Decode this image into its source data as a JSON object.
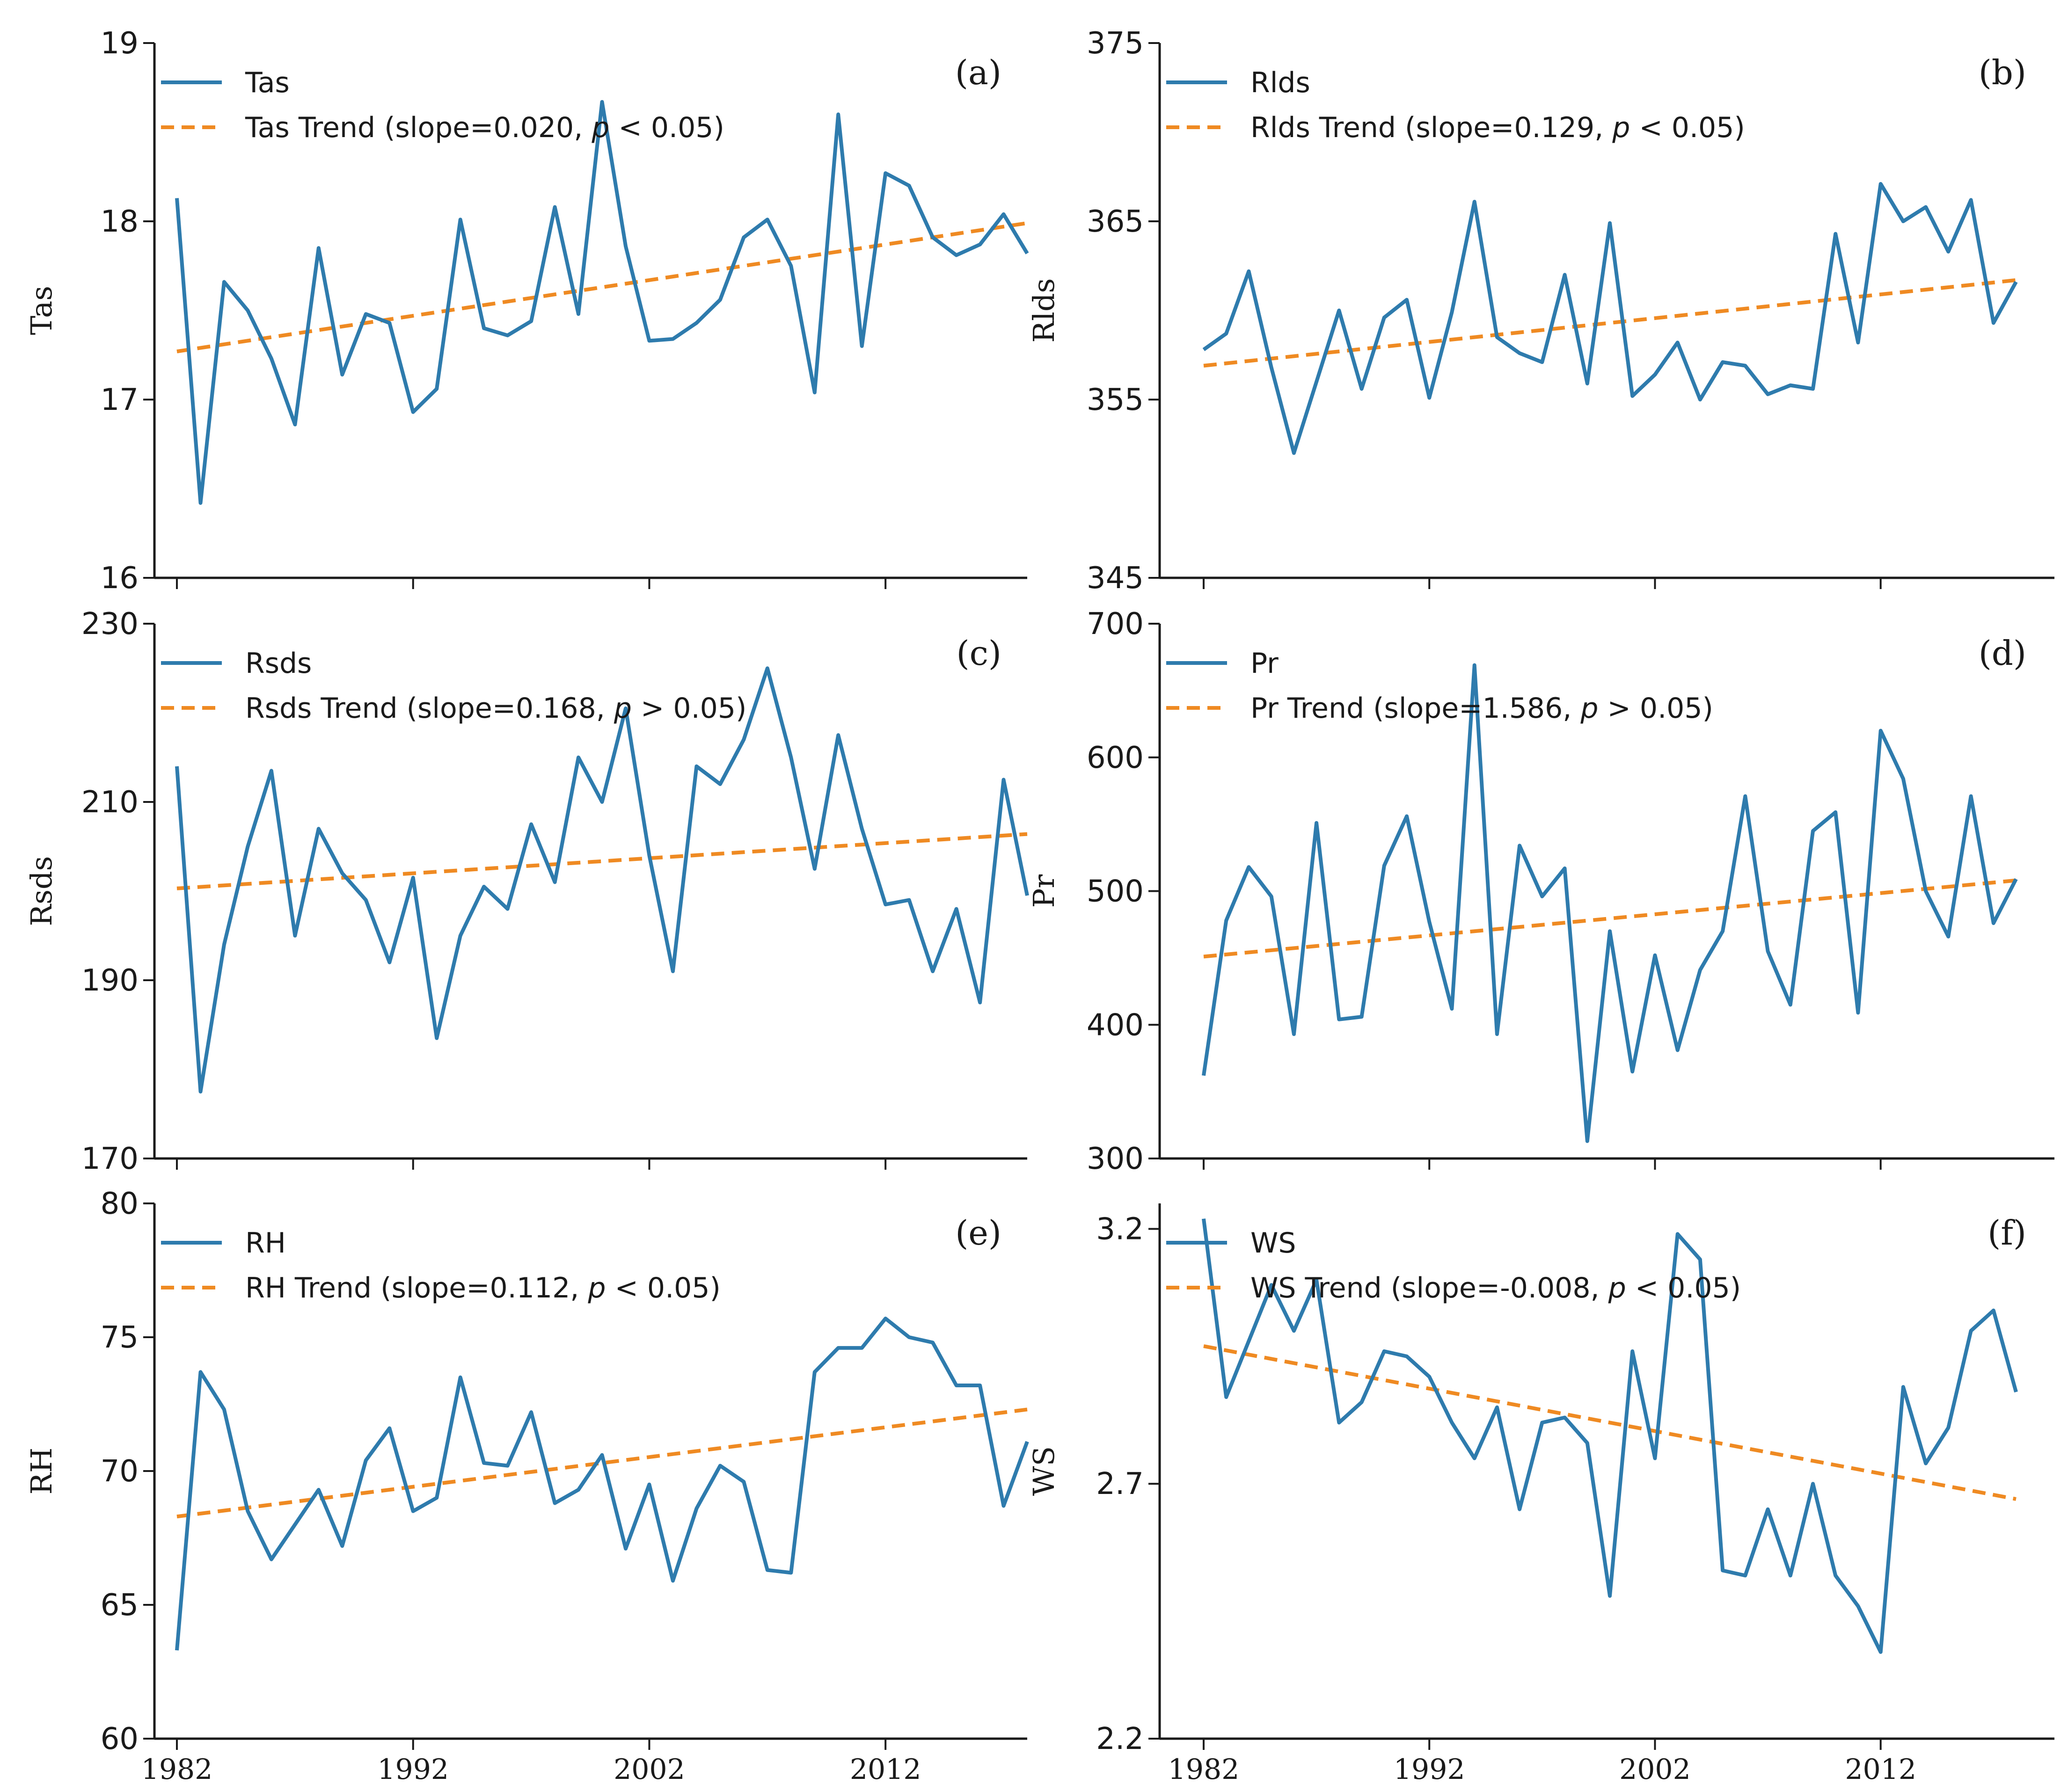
{
  "colors": {
    "series": "#2e7bad",
    "trend": "#ef8a22"
  },
  "chart_data": [
    {
      "id": "a",
      "type": "line",
      "panel_label": "(a)",
      "ylabel": "Tas",
      "ylim": [
        16,
        19
      ],
      "yticks": [
        "16",
        "17",
        "18",
        "19"
      ],
      "xticks": [
        "1982",
        "1992",
        "2002",
        "2012"
      ],
      "xtick_values": [
        1982,
        1992,
        2002,
        2012
      ],
      "x_start": 1982,
      "series": [
        {
          "name": "Tas",
          "values": [
            18.13,
            16.42,
            17.66,
            17.5,
            17.23,
            16.86,
            17.85,
            17.14,
            17.48,
            17.43,
            16.93,
            17.06,
            18.01,
            17.4,
            17.36,
            17.44,
            18.08,
            17.48,
            18.67,
            17.86,
            17.33,
            17.34,
            17.43,
            17.56,
            17.91,
            18.01,
            17.75,
            17.04,
            18.6,
            17.3,
            18.27,
            18.2,
            17.91,
            17.81,
            17.87,
            18.04,
            17.82
          ]
        }
      ],
      "trend": {
        "name": "Tas Trend",
        "start": 17.27,
        "end": 17.99
      },
      "legend": {
        "series_label": "Tas",
        "trend_label_prefix": "Tas Trend (slope=0.020, ",
        "p_symbol": "p",
        "trend_label_suffix": " < 0.05)"
      }
    },
    {
      "id": "b",
      "type": "line",
      "panel_label": "(b)",
      "ylabel": "Rlds",
      "ylim": [
        345,
        375
      ],
      "yticks": [
        "345",
        "355",
        "365",
        "375"
      ],
      "xticks": [
        "1982",
        "1992",
        "2002",
        "2012"
      ],
      "xtick_values": [
        1982,
        1992,
        2002,
        2012
      ],
      "x_start": 1982,
      "series": [
        {
          "name": "Rlds",
          "values": [
            357.8,
            358.7,
            362.2,
            356.8,
            352.0,
            356.0,
            360.0,
            355.6,
            359.6,
            360.6,
            355.1,
            359.9,
            366.1,
            358.5,
            357.6,
            357.1,
            362.0,
            355.9,
            364.9,
            355.2,
            356.4,
            358.2,
            355.0,
            357.1,
            356.9,
            355.3,
            355.8,
            355.6,
            364.3,
            358.2,
            367.1,
            365.0,
            365.8,
            363.3,
            366.2,
            359.3,
            361.6
          ]
        }
      ],
      "trend": {
        "name": "Rlds Trend",
        "start": 356.9,
        "end": 361.7
      },
      "legend": {
        "series_label": "Rlds",
        "trend_label_prefix": "Rlds Trend (slope=0.129, ",
        "p_symbol": "p",
        "trend_label_suffix": " < 0.05)"
      }
    },
    {
      "id": "c",
      "type": "line",
      "panel_label": "(c)",
      "ylabel": "Rsds",
      "ylim": [
        170,
        230
      ],
      "yticks": [
        "170",
        "190",
        "210",
        "230"
      ],
      "xticks": [
        "1982",
        "1992",
        "2002",
        "2012"
      ],
      "xtick_values": [
        1982,
        1992,
        2002,
        2012
      ],
      "x_start": 1982,
      "series": [
        {
          "name": "Rsds",
          "values": [
            214.0,
            177.5,
            194.0,
            205.0,
            213.5,
            195.0,
            207.0,
            202.0,
            199.0,
            192.0,
            201.5,
            183.5,
            195.0,
            200.5,
            198.0,
            207.5,
            201.0,
            215.0,
            210.0,
            220.5,
            204.0,
            191.0,
            214.0,
            212.0,
            217.0,
            225.0,
            215.0,
            202.5,
            217.5,
            207.0,
            198.5,
            199.0,
            191.0,
            198.0,
            187.5,
            212.5,
            199.5
          ]
        }
      ],
      "trend": {
        "name": "Rsds Trend",
        "start": 200.3,
        "end": 206.4
      },
      "legend": {
        "series_label": "Rsds",
        "trend_label_prefix": "Rsds Trend (slope=0.168, ",
        "p_symbol": "p",
        "trend_label_suffix": " > 0.05)"
      }
    },
    {
      "id": "d",
      "type": "line",
      "panel_label": "(d)",
      "ylabel": "Pr",
      "ylim": [
        300,
        700
      ],
      "yticks": [
        "300",
        "400",
        "500",
        "600",
        "700"
      ],
      "xticks": [
        "1982",
        "1992",
        "2002",
        "2012"
      ],
      "xtick_values": [
        1982,
        1992,
        2002,
        2012
      ],
      "x_start": 1982,
      "series": [
        {
          "name": "Pr",
          "values": [
            362,
            478,
            518,
            496,
            393,
            551,
            404,
            406,
            519,
            556,
            477,
            412,
            669,
            393,
            534,
            496,
            517,
            313,
            470,
            365,
            452,
            381,
            441,
            470,
            571,
            455,
            415,
            545,
            559,
            409,
            620,
            584,
            500,
            466,
            571,
            476,
            509
          ]
        }
      ],
      "trend": {
        "name": "Pr Trend",
        "start": 451,
        "end": 508
      },
      "legend": {
        "series_label": "Pr",
        "trend_label_prefix": "Pr Trend (slope=1.586, ",
        "p_symbol": "p",
        "trend_label_suffix": " > 0.05)"
      }
    },
    {
      "id": "e",
      "type": "line",
      "panel_label": "(e)",
      "ylabel": "RH",
      "ylim": [
        60,
        80
      ],
      "yticks": [
        "60",
        "65",
        "70",
        "75",
        "80"
      ],
      "xticks": [
        "1982",
        "1992",
        "2002",
        "2012"
      ],
      "xtick_values": [
        1982,
        1992,
        2002,
        2012
      ],
      "x_start": 1982,
      "series": [
        {
          "name": "RH",
          "values": [
            63.3,
            73.7,
            72.3,
            68.5,
            66.7,
            68.0,
            69.3,
            67.2,
            70.4,
            71.6,
            68.5,
            69.0,
            73.5,
            70.3,
            70.2,
            72.2,
            68.8,
            69.3,
            70.6,
            67.1,
            69.5,
            65.9,
            68.6,
            70.2,
            69.6,
            66.3,
            66.2,
            73.7,
            74.6,
            74.6,
            75.7,
            75.0,
            74.8,
            73.2,
            73.2,
            68.7,
            71.1
          ]
        }
      ],
      "trend": {
        "name": "RH Trend",
        "start": 68.3,
        "end": 72.3
      },
      "legend": {
        "series_label": "RH",
        "trend_label_prefix": "RH Trend (slope=0.112, ",
        "p_symbol": "p",
        "trend_label_suffix": " < 0.05)"
      }
    },
    {
      "id": "f",
      "type": "line",
      "panel_label": "(f)",
      "ylabel": "WS",
      "ylim": [
        2.2,
        3.25
      ],
      "yticks": [
        "2.2",
        "2.7",
        "3.2"
      ],
      "ytick_values": [
        2.2,
        2.7,
        3.2
      ],
      "xticks": [
        "1982",
        "1992",
        "2002",
        "2012"
      ],
      "xtick_values": [
        1982,
        1992,
        2002,
        2012
      ],
      "x_start": 1982,
      "series": [
        {
          "name": "WS",
          "values": [
            3.22,
            2.87,
            2.98,
            3.09,
            3.0,
            3.1,
            2.82,
            2.86,
            2.96,
            2.95,
            2.91,
            2.82,
            2.75,
            2.85,
            2.65,
            2.82,
            2.83,
            2.78,
            2.48,
            2.96,
            2.75,
            3.19,
            3.14,
            2.53,
            2.52,
            2.65,
            2.52,
            2.7,
            2.52,
            2.46,
            2.37,
            2.89,
            2.74,
            2.81,
            3.0,
            3.04,
            2.88
          ]
        }
      ],
      "trend": {
        "name": "WS Trend",
        "start": 2.97,
        "end": 2.67
      },
      "legend": {
        "series_label": "WS",
        "trend_label_prefix": "WS Trend (slope=-0.008, ",
        "p_symbol": "p",
        "trend_label_suffix": " < 0.05)"
      }
    }
  ]
}
